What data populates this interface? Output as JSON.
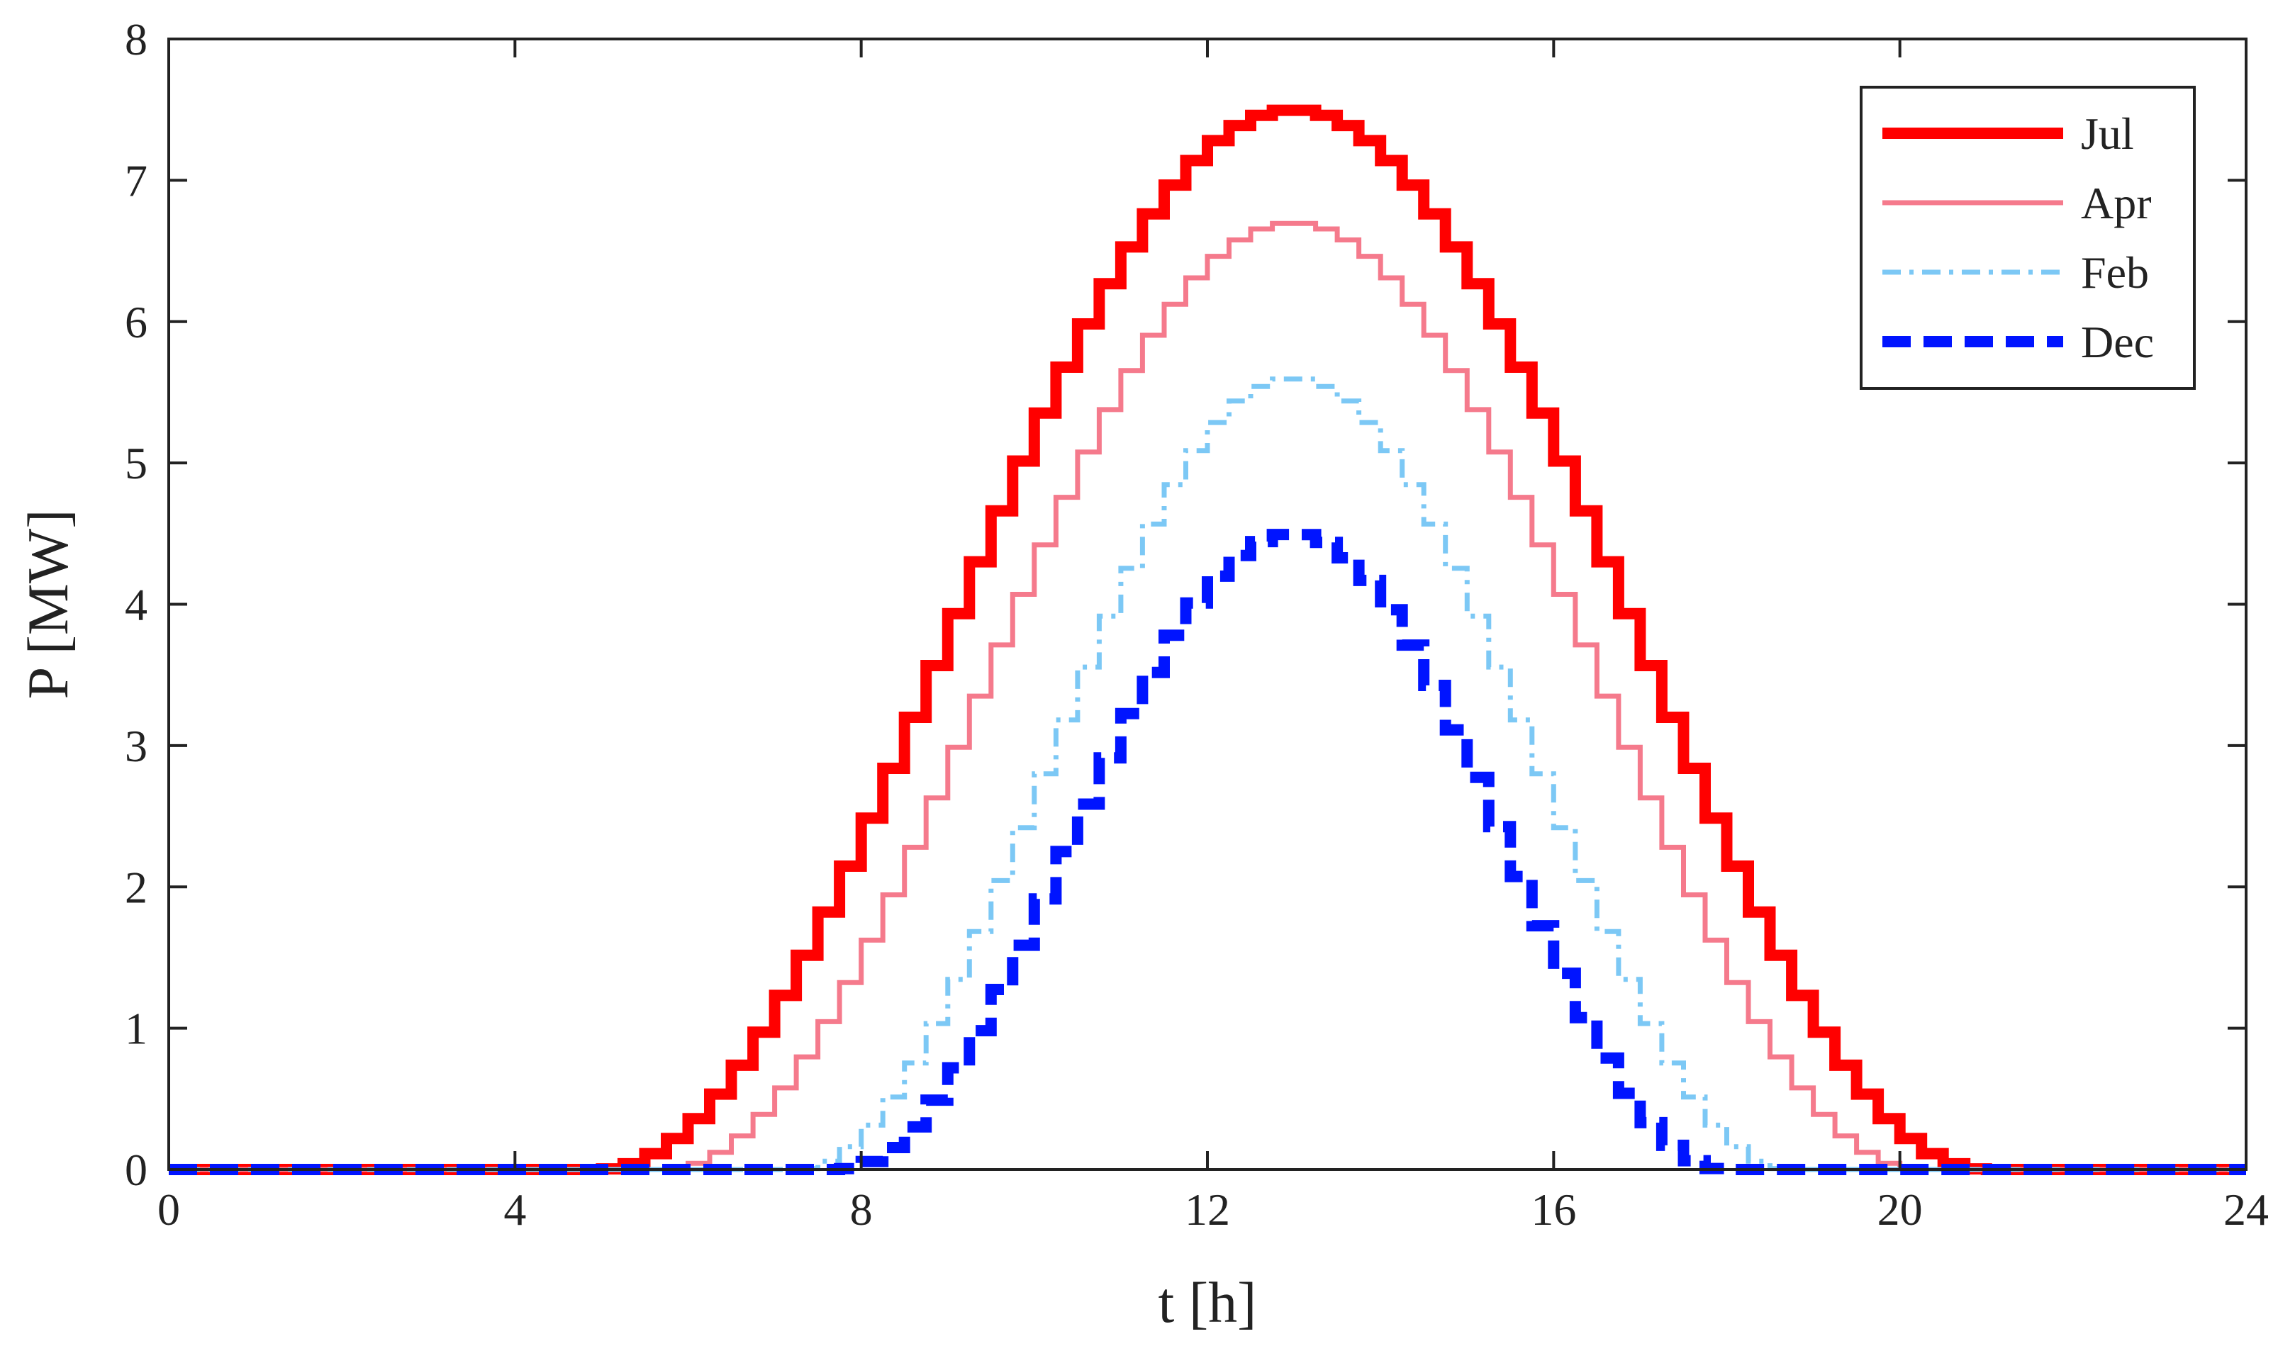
{
  "chart_data": {
    "type": "line",
    "step": true,
    "xlabel": "t [h]",
    "ylabel": "P [MW]",
    "xlim": [
      0,
      24
    ],
    "ylim": [
      0,
      8
    ],
    "xticks": [
      0,
      4,
      8,
      12,
      16,
      20,
      24
    ],
    "yticks": [
      0,
      1,
      2,
      3,
      4,
      5,
      6,
      7,
      8
    ],
    "grid": false,
    "legend": "top-right",
    "series": [
      {
        "name": "Jul",
        "color": "#ff0000",
        "style": "solid-thick",
        "peak_mw": 7.5,
        "sunrise_h": 5.0,
        "sunset_h": 21.0,
        "peak_h": 13.0
      },
      {
        "name": "Apr",
        "color": "#f57a8c",
        "style": "solid-thin",
        "peak_mw": 6.7,
        "sunrise_h": 5.75,
        "sunset_h": 20.25,
        "peak_h": 13.0
      },
      {
        "name": "Feb",
        "color": "#7cc8f5",
        "style": "dash-dot-thin",
        "peak_mw": 5.6,
        "sunrise_h": 7.25,
        "sunset_h": 18.75,
        "peak_h": 13.0
      },
      {
        "name": "Dec",
        "color": "#0014ff",
        "style": "dashed-thick",
        "peak_mw": 4.5,
        "sunrise_h": 7.75,
        "sunset_h": 18.0,
        "peak_h": 13.0
      }
    ]
  }
}
